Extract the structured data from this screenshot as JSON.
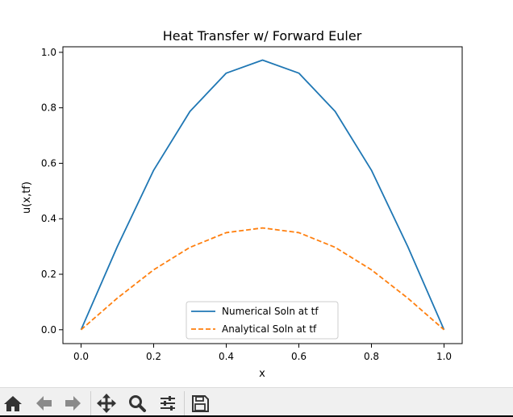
{
  "chart_data": {
    "type": "line",
    "title": "Heat Transfer w/ Forward Euler",
    "xlabel": "x",
    "ylabel": "u(x,tf)",
    "xlim": [
      -0.05,
      1.05
    ],
    "ylim": [
      -0.05,
      1.02
    ],
    "xticks": [
      0.0,
      0.2,
      0.4,
      0.6,
      0.8,
      1.0
    ],
    "xtick_labels": [
      "0.0",
      "0.2",
      "0.4",
      "0.6",
      "0.8",
      "1.0"
    ],
    "yticks": [
      0.0,
      0.2,
      0.4,
      0.6,
      0.8,
      1.0
    ],
    "ytick_labels": [
      "0.0",
      "0.2",
      "0.4",
      "0.6",
      "0.8",
      "1.0"
    ],
    "grid": false,
    "legend_position": "lower-center",
    "x": [
      0.0,
      0.1,
      0.2,
      0.3,
      0.4,
      0.5,
      0.6,
      0.7,
      0.8,
      0.9,
      1.0
    ],
    "series": [
      {
        "name": "Numerical Soln at tf",
        "color": "#1f77b4",
        "style": "solid",
        "values": [
          0.0,
          0.3,
          0.575,
          0.787,
          0.925,
          0.972,
          0.925,
          0.787,
          0.575,
          0.3,
          0.0
        ]
      },
      {
        "name": "Analytical Soln at tf",
        "color": "#ff7f0e",
        "style": "dashed",
        "values": [
          0.0,
          0.114,
          0.216,
          0.297,
          0.35,
          0.367,
          0.35,
          0.297,
          0.216,
          0.114,
          0.0
        ]
      }
    ]
  },
  "toolbar": {
    "buttons": [
      {
        "name": "home-button",
        "icon": "home-icon"
      },
      {
        "name": "back-button",
        "icon": "arrow-left-icon"
      },
      {
        "name": "forward-button",
        "icon": "arrow-right-icon"
      },
      {
        "name": "pan-button",
        "icon": "move-icon"
      },
      {
        "name": "zoom-button",
        "icon": "magnifier-icon"
      },
      {
        "name": "configure-subplots-button",
        "icon": "sliders-icon"
      },
      {
        "name": "save-button",
        "icon": "floppy-icon"
      }
    ]
  }
}
